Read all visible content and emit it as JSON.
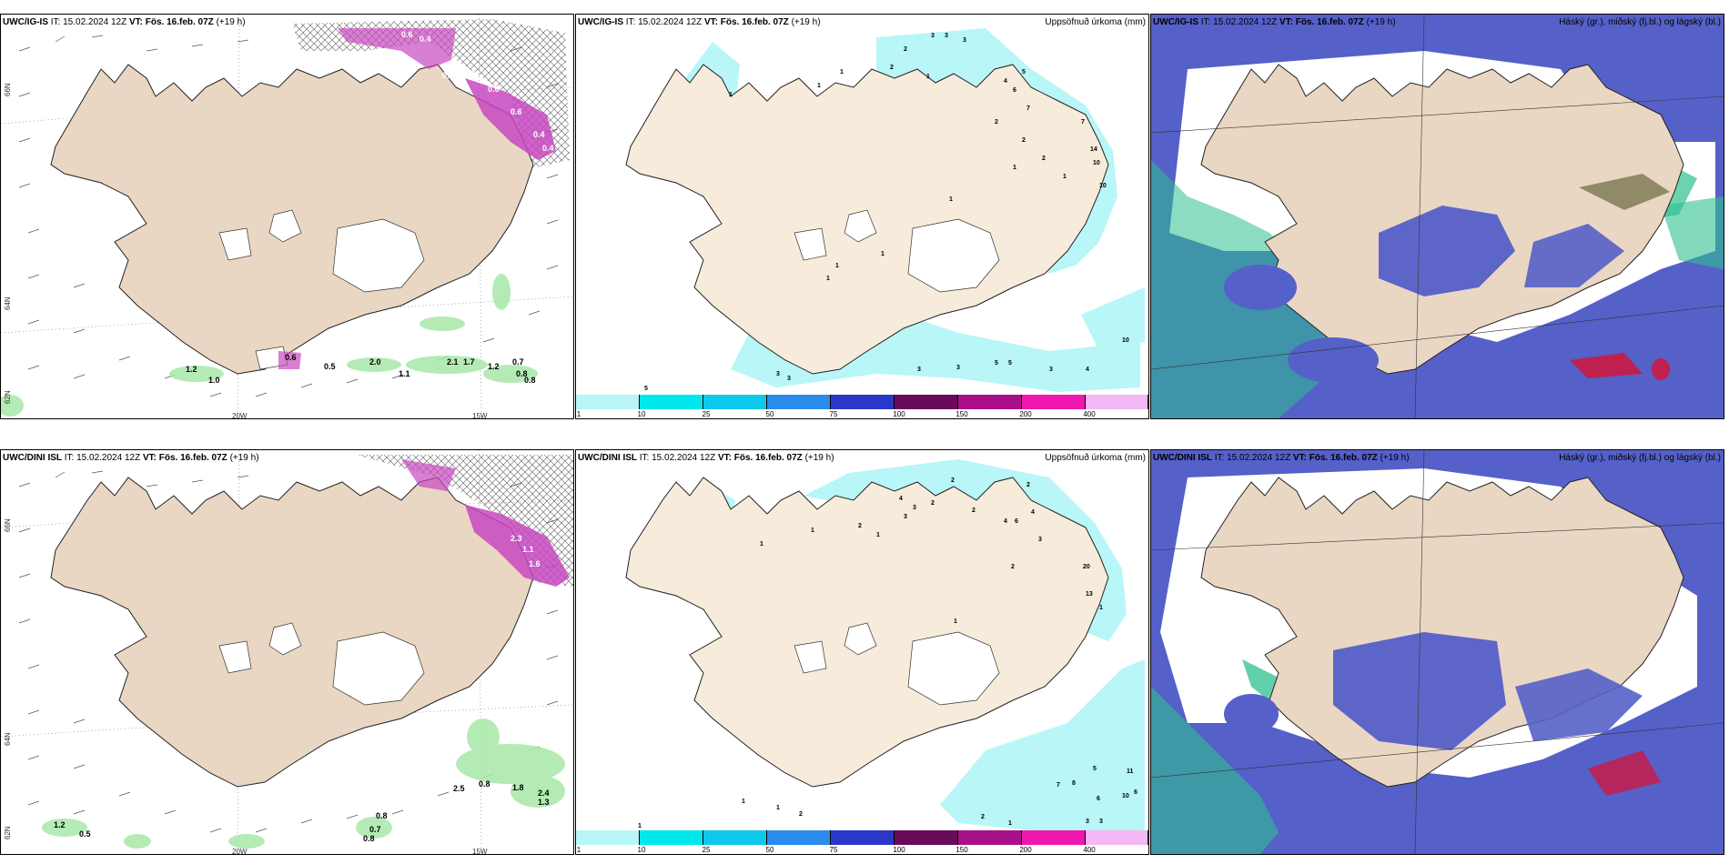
{
  "panels": [
    {
      "id": "top-left",
      "model": "UWC/IG-IS",
      "it": "IT: 15.02.2024 12Z",
      "vt_label": "VT:",
      "vt": "Fös. 16.feb. 07Z",
      "lead": "(+19 h)",
      "title_right": "",
      "lat_labels": [
        "66N",
        "64N",
        "62N"
      ],
      "lon_labels": [
        "20W",
        "15W"
      ],
      "values": [
        "0.6",
        "0.4",
        "0.5",
        "0.6",
        "0.6",
        "0.4",
        "0.4",
        "1.2",
        "1.0",
        "0.5",
        "2.0",
        "1.1",
        "2.1",
        "1.7",
        "1.2",
        "0.7",
        "0.8",
        "0.8",
        "0.6"
      ]
    },
    {
      "id": "top-middle",
      "model": "UWC/IG-IS",
      "it": "IT: 15.02.2024 12Z",
      "vt_label": "VT:",
      "vt": "Fös. 16.feb. 07Z",
      "lead": "(+19 h)",
      "title_right": "Uppsöfnuð úrkoma (mm)",
      "values": [
        "3",
        "3",
        "3",
        "2",
        "2",
        "1",
        "1",
        "1",
        "4",
        "5",
        "6",
        "7",
        "7",
        "2",
        "2",
        "1",
        "2",
        "1",
        "1",
        "1",
        "10",
        "14",
        "10",
        "1",
        "1",
        "1",
        "3",
        "3",
        "3",
        "5",
        "5",
        "4",
        "10",
        "3",
        "3",
        "5"
      ]
    },
    {
      "id": "top-right",
      "model": "UWC/IG-IS",
      "it": "IT: 15.02.2024 12Z",
      "vt_label": "VT:",
      "vt": "Fös. 16.feb. 07Z",
      "lead": "(+19 h)",
      "title_right": "Háský (gr.), miðský (fj.bl.) og lágský (bl.)"
    },
    {
      "id": "bottom-left",
      "model": "UWC/DINI ISL",
      "it": "IT: 15.02.2024 12Z",
      "vt_label": "VT:",
      "vt": "Fös. 16.feb. 07Z",
      "lead": "(+19 h)",
      "title_right": "",
      "lat_labels": [
        "66N",
        "64N",
        "62N"
      ],
      "lon_labels": [
        "20W",
        "15W"
      ],
      "values": [
        "2.3",
        "1.1",
        "1.6",
        "1.2",
        "0.5",
        "0.8",
        "0.7",
        "0.8",
        "2.5",
        "0.8",
        "1.8",
        "2.4",
        "1.3"
      ]
    },
    {
      "id": "bottom-middle",
      "model": "UWC/DINI ISL",
      "it": "IT: 15.02.2024 12Z",
      "vt_label": "VT:",
      "vt": "Fös. 16.feb. 07Z",
      "lead": "(+19 h)",
      "title_right": "Uppsöfnuð úrkoma (mm)",
      "values": [
        "2",
        "2",
        "4",
        "3",
        "2",
        "3",
        "2",
        "1",
        "1",
        "1",
        "2",
        "4",
        "6",
        "4",
        "3",
        "2",
        "20",
        "13",
        "1",
        "1",
        "5",
        "11",
        "7",
        "8",
        "6",
        "10",
        "6",
        "2",
        "1",
        "3",
        "3",
        "1",
        "1",
        "1",
        "2"
      ]
    },
    {
      "id": "bottom-right",
      "model": "UWC/DINI ISL",
      "it": "IT: 15.02.2024 12Z",
      "vt_label": "VT:",
      "vt": "Fös. 16.feb. 07Z",
      "lead": "(+19 h)",
      "title_right": "Háský (gr.), miðský (fj.bl.) og lágský (bl.)"
    }
  ],
  "colorbar": {
    "labels": [
      "1",
      "10",
      "25",
      "50",
      "75",
      "100",
      "150",
      "200",
      "400"
    ],
    "colors": [
      "#b8f6f8",
      "#00e8ee",
      "#10c8ec",
      "#2a8cec",
      "#2a38c8",
      "#6a0a5a",
      "#a8108a",
      "#ee18b0",
      "#f4b8f4"
    ]
  },
  "colors": {
    "land": "#f7ebdb",
    "land_tan": "#e9d7c3",
    "precip": "#b8f6f8",
    "pink": "#d048c8",
    "green": "#a8e8a8",
    "cloud_low": "#5560c8",
    "cloud_high": "#2ec090",
    "cloud_red": "#c02050"
  }
}
